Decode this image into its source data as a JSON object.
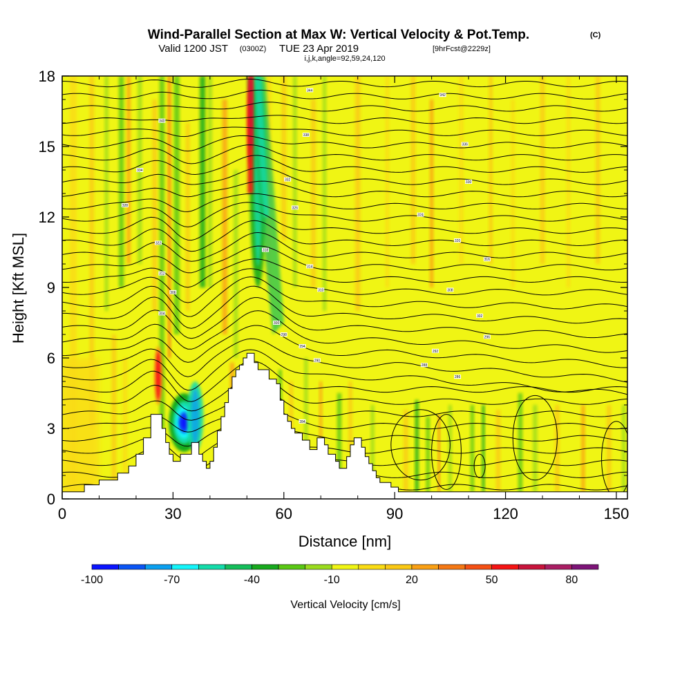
{
  "title": {
    "main": "Wind-Parallel Section at Max W: Vertical Velocity & Pot.Temp.",
    "copyright": "(C)",
    "valid_prefix": "Valid 1200 JST",
    "valid_utc": "(0300Z)",
    "valid_date": "TUE 23 Apr 2019",
    "forecast": "[9hrFcst@2229z]",
    "indices": "i,j,k,angle=92,59,24,120"
  },
  "chart_data": {
    "type": "heatmap",
    "xlabel": "Distance [nm]",
    "ylabel": "Height [Kft MSL]",
    "xlim": [
      0,
      153
    ],
    "ylim": [
      0,
      18
    ],
    "xticks": [
      0,
      30,
      60,
      90,
      120,
      150
    ],
    "yticks": [
      0,
      3,
      6,
      9,
      12,
      15,
      18
    ],
    "colorbar": {
      "title": "Vertical Velocity [cm/s]",
      "levels": [
        -100,
        -90,
        -80,
        -70,
        -60,
        -50,
        -40,
        -30,
        -20,
        -10,
        0,
        10,
        20,
        30,
        40,
        50,
        60,
        70,
        80,
        90
      ],
      "tick_values": [
        -100,
        -70,
        -40,
        -10,
        20,
        50,
        80
      ],
      "colors": [
        "#0a14ff",
        "#0a55f5",
        "#0aa0f0",
        "#14f5fa",
        "#14dcaa",
        "#14be5a",
        "#18aa1e",
        "#5ac814",
        "#9bdc1e",
        "#f0f514",
        "#fadc14",
        "#fac814",
        "#faa014",
        "#f57814",
        "#f55014",
        "#f51414",
        "#c8143c",
        "#aa1e64",
        "#7d1478"
      ]
    },
    "terrain_profile": [
      {
        "x": 0,
        "y": 0.3
      },
      {
        "x": 6,
        "y": 0.3
      },
      {
        "x": 6,
        "y": 0.6
      },
      {
        "x": 10,
        "y": 0.6
      },
      {
        "x": 10,
        "y": 0.8
      },
      {
        "x": 15,
        "y": 0.8
      },
      {
        "x": 15,
        "y": 1.1
      },
      {
        "x": 18,
        "y": 1.1
      },
      {
        "x": 18,
        "y": 1.4
      },
      {
        "x": 20,
        "y": 1.4
      },
      {
        "x": 20,
        "y": 1.9
      },
      {
        "x": 22,
        "y": 1.9
      },
      {
        "x": 22,
        "y": 2.6
      },
      {
        "x": 24,
        "y": 2.6
      },
      {
        "x": 24,
        "y": 3.6
      },
      {
        "x": 27,
        "y": 3.6
      },
      {
        "x": 27,
        "y": 3.0
      },
      {
        "x": 28,
        "y": 3.0
      },
      {
        "x": 28,
        "y": 2.4
      },
      {
        "x": 29,
        "y": 2.4
      },
      {
        "x": 29,
        "y": 1.9
      },
      {
        "x": 30,
        "y": 1.9
      },
      {
        "x": 30,
        "y": 1.6
      },
      {
        "x": 32,
        "y": 1.6
      },
      {
        "x": 32,
        "y": 1.9
      },
      {
        "x": 35,
        "y": 1.9
      },
      {
        "x": 35,
        "y": 2.4
      },
      {
        "x": 37,
        "y": 2.4
      },
      {
        "x": 37,
        "y": 1.9
      },
      {
        "x": 38,
        "y": 1.9
      },
      {
        "x": 38,
        "y": 1.6
      },
      {
        "x": 39,
        "y": 1.6
      },
      {
        "x": 39,
        "y": 1.3
      },
      {
        "x": 40,
        "y": 1.3
      },
      {
        "x": 40,
        "y": 1.6
      },
      {
        "x": 41,
        "y": 1.6
      },
      {
        "x": 41,
        "y": 2.2
      },
      {
        "x": 42,
        "y": 2.2
      },
      {
        "x": 42,
        "y": 2.9
      },
      {
        "x": 43,
        "y": 2.9
      },
      {
        "x": 43,
        "y": 3.5
      },
      {
        "x": 44,
        "y": 3.5
      },
      {
        "x": 44,
        "y": 4.1
      },
      {
        "x": 45,
        "y": 4.1
      },
      {
        "x": 45,
        "y": 4.7
      },
      {
        "x": 46,
        "y": 4.7
      },
      {
        "x": 46,
        "y": 5.2
      },
      {
        "x": 47,
        "y": 5.2
      },
      {
        "x": 47,
        "y": 5.5
      },
      {
        "x": 48,
        "y": 5.5
      },
      {
        "x": 48,
        "y": 5.7
      },
      {
        "x": 49,
        "y": 5.7
      },
      {
        "x": 49,
        "y": 6.0
      },
      {
        "x": 50,
        "y": 6.0
      },
      {
        "x": 50,
        "y": 6.2
      },
      {
        "x": 52,
        "y": 6.2
      },
      {
        "x": 52,
        "y": 5.8
      },
      {
        "x": 53,
        "y": 5.8
      },
      {
        "x": 53,
        "y": 5.5
      },
      {
        "x": 56,
        "y": 5.5
      },
      {
        "x": 56,
        "y": 5.1
      },
      {
        "x": 58,
        "y": 5.1
      },
      {
        "x": 58,
        "y": 4.9
      },
      {
        "x": 59,
        "y": 4.9
      },
      {
        "x": 59,
        "y": 4.2
      },
      {
        "x": 60,
        "y": 4.2
      },
      {
        "x": 60,
        "y": 3.6
      },
      {
        "x": 61,
        "y": 3.6
      },
      {
        "x": 61,
        "y": 3.3
      },
      {
        "x": 62,
        "y": 3.3
      },
      {
        "x": 62,
        "y": 3.0
      },
      {
        "x": 63,
        "y": 3.0
      },
      {
        "x": 63,
        "y": 2.8
      },
      {
        "x": 65,
        "y": 2.8
      },
      {
        "x": 65,
        "y": 2.5
      },
      {
        "x": 67,
        "y": 2.5
      },
      {
        "x": 67,
        "y": 2.1
      },
      {
        "x": 69,
        "y": 2.1
      },
      {
        "x": 69,
        "y": 2.6
      },
      {
        "x": 71,
        "y": 2.6
      },
      {
        "x": 71,
        "y": 2.3
      },
      {
        "x": 72,
        "y": 2.3
      },
      {
        "x": 72,
        "y": 1.9
      },
      {
        "x": 74,
        "y": 1.9
      },
      {
        "x": 74,
        "y": 1.6
      },
      {
        "x": 75,
        "y": 1.6
      },
      {
        "x": 75,
        "y": 1.3
      },
      {
        "x": 77,
        "y": 1.3
      },
      {
        "x": 77,
        "y": 1.8
      },
      {
        "x": 78,
        "y": 1.8
      },
      {
        "x": 78,
        "y": 2.3
      },
      {
        "x": 79,
        "y": 2.3
      },
      {
        "x": 79,
        "y": 2.6
      },
      {
        "x": 81,
        "y": 2.6
      },
      {
        "x": 81,
        "y": 2.2
      },
      {
        "x": 82,
        "y": 2.2
      },
      {
        "x": 82,
        "y": 1.8
      },
      {
        "x": 83,
        "y": 1.8
      },
      {
        "x": 83,
        "y": 1.5
      },
      {
        "x": 84,
        "y": 1.5
      },
      {
        "x": 84,
        "y": 1.2
      },
      {
        "x": 85,
        "y": 1.2
      },
      {
        "x": 85,
        "y": 0.9
      },
      {
        "x": 86,
        "y": 0.9
      },
      {
        "x": 86,
        "y": 0.7
      },
      {
        "x": 89,
        "y": 0.7
      },
      {
        "x": 89,
        "y": 0.5
      },
      {
        "x": 91,
        "y": 0.5
      },
      {
        "x": 91,
        "y": 0.3
      },
      {
        "x": 153,
        "y": 0.3
      }
    ],
    "wind_updraft_features": [
      {
        "x": 33,
        "y_range": [
          2.0,
          4.5
        ],
        "w": -100
      },
      {
        "x": 36,
        "y_range": [
          2.0,
          5.0
        ],
        "w": -60
      },
      {
        "x": 26,
        "y_range": [
          4.0,
          6.5
        ],
        "w": 50
      },
      {
        "x": 51,
        "y_range": [
          14.0,
          18.0
        ],
        "w": 60
      },
      {
        "x": 53,
        "y_range": [
          9.0,
          18.0
        ],
        "w": -40
      }
    ],
    "theta_contour_labels": [
      {
        "x": 67,
        "y": 17.4,
        "text": "344"
      },
      {
        "x": 103,
        "y": 17.2,
        "text": "342"
      },
      {
        "x": 27,
        "y": 16.1,
        "text": "340"
      },
      {
        "x": 66,
        "y": 15.5,
        "text": "338"
      },
      {
        "x": 109,
        "y": 15.1,
        "text": "336"
      },
      {
        "x": 21,
        "y": 14.0,
        "text": "334"
      },
      {
        "x": 61,
        "y": 13.6,
        "text": "332"
      },
      {
        "x": 110,
        "y": 13.5,
        "text": "330"
      },
      {
        "x": 17,
        "y": 12.5,
        "text": "328"
      },
      {
        "x": 63,
        "y": 12.4,
        "text": "326"
      },
      {
        "x": 97,
        "y": 12.1,
        "text": "324"
      },
      {
        "x": 26,
        "y": 10.9,
        "text": "322"
      },
      {
        "x": 107,
        "y": 11.0,
        "text": "320"
      },
      {
        "x": 55,
        "y": 10.6,
        "text": "318"
      },
      {
        "x": 115,
        "y": 10.2,
        "text": "316"
      },
      {
        "x": 67,
        "y": 9.9,
        "text": "314"
      },
      {
        "x": 27,
        "y": 9.6,
        "text": "312"
      },
      {
        "x": 70,
        "y": 8.9,
        "text": "310"
      },
      {
        "x": 105,
        "y": 8.9,
        "text": "308"
      },
      {
        "x": 30,
        "y": 8.8,
        "text": "306"
      },
      {
        "x": 27,
        "y": 7.9,
        "text": "304"
      },
      {
        "x": 113,
        "y": 7.8,
        "text": "302"
      },
      {
        "x": 58,
        "y": 7.5,
        "text": "300"
      },
      {
        "x": 60,
        "y": 7.0,
        "text": "298"
      },
      {
        "x": 115,
        "y": 6.9,
        "text": "296"
      },
      {
        "x": 65,
        "y": 6.5,
        "text": "294"
      },
      {
        "x": 101,
        "y": 6.3,
        "text": "292"
      },
      {
        "x": 69,
        "y": 5.9,
        "text": "290"
      },
      {
        "x": 98,
        "y": 5.7,
        "text": "288"
      },
      {
        "x": 107,
        "y": 5.2,
        "text": "286"
      },
      {
        "x": 65,
        "y": 3.3,
        "text": "284"
      }
    ]
  }
}
